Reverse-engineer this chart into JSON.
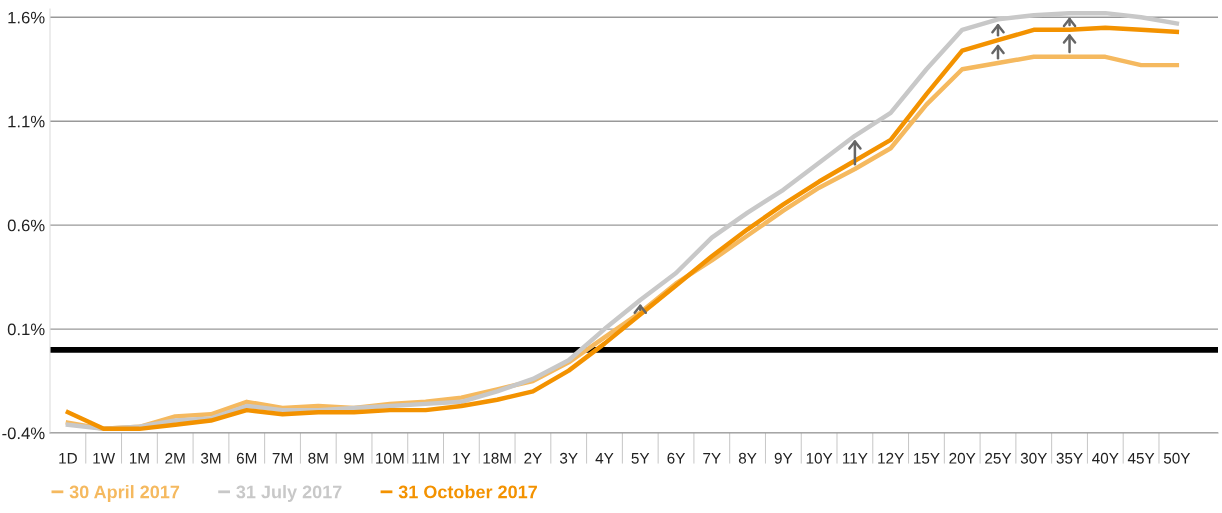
{
  "chart_data": {
    "type": "line",
    "categories": [
      "1D",
      "1W",
      "1M",
      "2M",
      "3M",
      "6M",
      "7M",
      "8M",
      "9M",
      "10M",
      "11M",
      "1Y",
      "18M",
      "2Y",
      "3Y",
      "4Y",
      "5Y",
      "6Y",
      "7Y",
      "8Y",
      "9Y",
      "10Y",
      "11Y",
      "12Y",
      "15Y",
      "20Y",
      "25Y",
      "30Y",
      "35Y",
      "40Y",
      "45Y",
      "50Y"
    ],
    "series": [
      {
        "name": "30 April 2017",
        "color": "#f5b95f",
        "values": [
          -0.35,
          -0.38,
          -0.37,
          -0.32,
          -0.31,
          -0.25,
          -0.28,
          -0.27,
          -0.28,
          -0.26,
          -0.25,
          -0.23,
          -0.19,
          -0.15,
          -0.06,
          0.06,
          0.18,
          0.32,
          0.43,
          0.55,
          0.67,
          0.78,
          0.87,
          0.97,
          1.18,
          1.35,
          1.38,
          1.41,
          1.41,
          1.41,
          1.37,
          1.37
        ]
      },
      {
        "name": "31 July 2017",
        "color": "#c8c8c8",
        "values": [
          -0.36,
          -0.38,
          -0.37,
          -0.34,
          -0.33,
          -0.27,
          -0.29,
          -0.29,
          -0.28,
          -0.27,
          -0.26,
          -0.25,
          -0.2,
          -0.14,
          -0.05,
          0.1,
          0.24,
          0.37,
          0.54,
          0.66,
          0.77,
          0.9,
          1.03,
          1.14,
          1.35,
          1.54,
          1.59,
          1.61,
          1.62,
          1.62,
          1.6,
          1.57
        ]
      },
      {
        "name": "31 October 2017",
        "color": "#f39200",
        "values": [
          -0.3,
          -0.38,
          -0.38,
          -0.36,
          -0.34,
          -0.29,
          -0.31,
          -0.3,
          -0.3,
          -0.29,
          -0.29,
          -0.27,
          -0.24,
          -0.2,
          -0.1,
          0.03,
          0.17,
          0.31,
          0.45,
          0.58,
          0.7,
          0.81,
          0.91,
          1.01,
          1.23,
          1.44,
          1.49,
          1.54,
          1.54,
          1.55,
          1.54,
          1.53
        ]
      }
    ],
    "ylim": [
      -0.4,
      1.64
    ],
    "yticks": [
      {
        "value": -0.4,
        "label": "-0.4%"
      },
      {
        "value": 0.1,
        "label": "0.1%"
      },
      {
        "value": 0.6,
        "label": "0.6%"
      },
      {
        "value": 1.1,
        "label": "1.1%"
      },
      {
        "value": 1.6,
        "label": "1.6%"
      }
    ],
    "grid": "y",
    "legend": "bottom left",
    "marker": "none",
    "line_style": "solid",
    "ref_lines": [
      {
        "axis": "y",
        "value": 0,
        "color": "#000000"
      }
    ]
  }
}
